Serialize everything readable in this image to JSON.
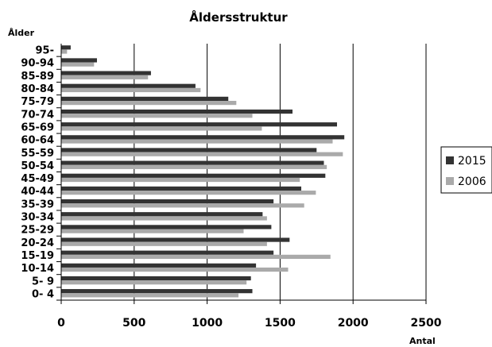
{
  "chart_data": {
    "type": "bar",
    "orientation": "horizontal",
    "title": "Åldersstruktur",
    "xlabel": "Antal",
    "ylabel": "Ålder",
    "xlim": [
      0,
      2500
    ],
    "xticks": [
      0,
      500,
      1000,
      1500,
      2000,
      2500
    ],
    "grid": true,
    "legend_position": "right",
    "categories": [
      "95-",
      "90-94",
      "85-89",
      "80-84",
      "75-79",
      "70-74",
      "65-69",
      "60-64",
      "55-59",
      "50-54",
      "45-49",
      "40-44",
      "35-39",
      "30-34",
      "25-29",
      "20-24",
      "15-19",
      "10-14",
      "5- 9",
      "0- 4"
    ],
    "series": [
      {
        "name": "2015",
        "color": "#333333",
        "values": [
          65,
          245,
          615,
          920,
          1145,
          1585,
          1890,
          1940,
          1750,
          1800,
          1810,
          1645,
          1455,
          1380,
          1440,
          1565,
          1455,
          1335,
          1300,
          1310
        ]
      },
      {
        "name": "2006",
        "color": "#aaaaaa",
        "values": [
          40,
          225,
          595,
          955,
          1200,
          1310,
          1375,
          1860,
          1930,
          1820,
          1635,
          1745,
          1665,
          1410,
          1250,
          1410,
          1845,
          1555,
          1270,
          1215
        ]
      }
    ]
  }
}
